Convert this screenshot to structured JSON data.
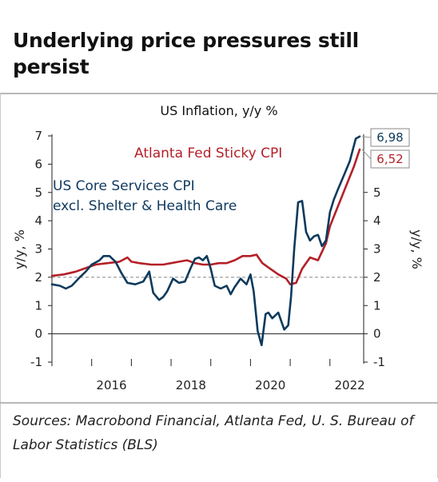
{
  "headline": "Underlying price pressures still persist",
  "sources": "Sources: Macrobond Financial, Atlanta Fed, U. S. Bureau of Labor Statistics (BLS)",
  "colors": {
    "sticky": "#b42028",
    "core": "#0d3a5c",
    "reference": "#888888"
  },
  "chart_data": {
    "type": "line",
    "title": "US Inflation, y/y %",
    "ylabel_left": "y/y, %",
    "ylabel_right": "y/y, %",
    "ylim": [
      -1,
      7
    ],
    "yticks_left": [
      "-1",
      "0",
      "1",
      "2",
      "3",
      "4",
      "5",
      "6",
      "7"
    ],
    "yticks_right": [
      "-1",
      "0",
      "1",
      "2",
      "3",
      "4",
      "5"
    ],
    "xlim": [
      2015.0,
      2022.85
    ],
    "xticks": [
      "2016",
      "2018",
      "2020",
      "2022"
    ],
    "reference_line": 2,
    "grid": false,
    "series": [
      {
        "name": "Atlanta Fed Sticky CPI",
        "end_value": "6,52",
        "x": [
          2015.0,
          2015.3,
          2015.6,
          2015.9,
          2016.1,
          2016.4,
          2016.7,
          2016.9,
          2017.0,
          2017.2,
          2017.5,
          2017.8,
          2018.0,
          2018.2,
          2018.4,
          2018.6,
          2018.8,
          2019.0,
          2019.2,
          2019.4,
          2019.6,
          2019.8,
          2020.0,
          2020.15,
          2020.3,
          2020.5,
          2020.7,
          2020.9,
          2021.0,
          2021.15,
          2021.3,
          2021.5,
          2021.7,
          2021.9,
          2022.0,
          2022.2,
          2022.4,
          2022.6,
          2022.75
        ],
        "y": [
          2.05,
          2.1,
          2.2,
          2.35,
          2.45,
          2.5,
          2.55,
          2.7,
          2.55,
          2.5,
          2.45,
          2.45,
          2.5,
          2.55,
          2.6,
          2.5,
          2.45,
          2.45,
          2.5,
          2.5,
          2.6,
          2.75,
          2.75,
          2.8,
          2.5,
          2.3,
          2.1,
          1.95,
          1.75,
          1.8,
          2.3,
          2.7,
          2.6,
          3.2,
          3.8,
          4.5,
          5.2,
          5.9,
          6.52
        ]
      },
      {
        "name": "US Core Services CPI excl. Shelter & Health Care",
        "end_value": "6,98",
        "x": [
          2015.0,
          2015.2,
          2015.35,
          2015.5,
          2015.7,
          2015.85,
          2016.0,
          2016.2,
          2016.3,
          2016.45,
          2016.6,
          2016.75,
          2016.9,
          2017.1,
          2017.3,
          2017.45,
          2017.55,
          2017.7,
          2017.8,
          2017.9,
          2018.05,
          2018.2,
          2018.35,
          2018.5,
          2018.6,
          2018.7,
          2018.8,
          2018.9,
          2019.0,
          2019.1,
          2019.25,
          2019.4,
          2019.5,
          2019.6,
          2019.75,
          2019.9,
          2020.0,
          2020.08,
          2020.18,
          2020.28,
          2020.38,
          2020.45,
          2020.55,
          2020.7,
          2020.85,
          2020.95,
          2021.02,
          2021.1,
          2021.2,
          2021.3,
          2021.4,
          2021.5,
          2021.6,
          2021.7,
          2021.8,
          2021.9,
          2022.0,
          2022.1,
          2022.2,
          2022.35,
          2022.5,
          2022.65,
          2022.75
        ],
        "y": [
          1.75,
          1.7,
          1.6,
          1.7,
          2.0,
          2.2,
          2.45,
          2.6,
          2.75,
          2.75,
          2.55,
          2.15,
          1.8,
          1.75,
          1.85,
          2.2,
          1.45,
          1.2,
          1.3,
          1.5,
          1.95,
          1.8,
          1.85,
          2.35,
          2.65,
          2.7,
          2.6,
          2.75,
          2.3,
          1.7,
          1.6,
          1.7,
          1.4,
          1.65,
          1.95,
          1.75,
          2.1,
          1.5,
          0.1,
          -0.4,
          0.7,
          0.75,
          0.55,
          0.75,
          0.15,
          0.3,
          1.3,
          3.0,
          4.65,
          4.7,
          3.6,
          3.3,
          3.45,
          3.5,
          3.1,
          3.3,
          4.3,
          4.75,
          5.1,
          5.6,
          6.1,
          6.9,
          6.98
        ]
      }
    ]
  }
}
